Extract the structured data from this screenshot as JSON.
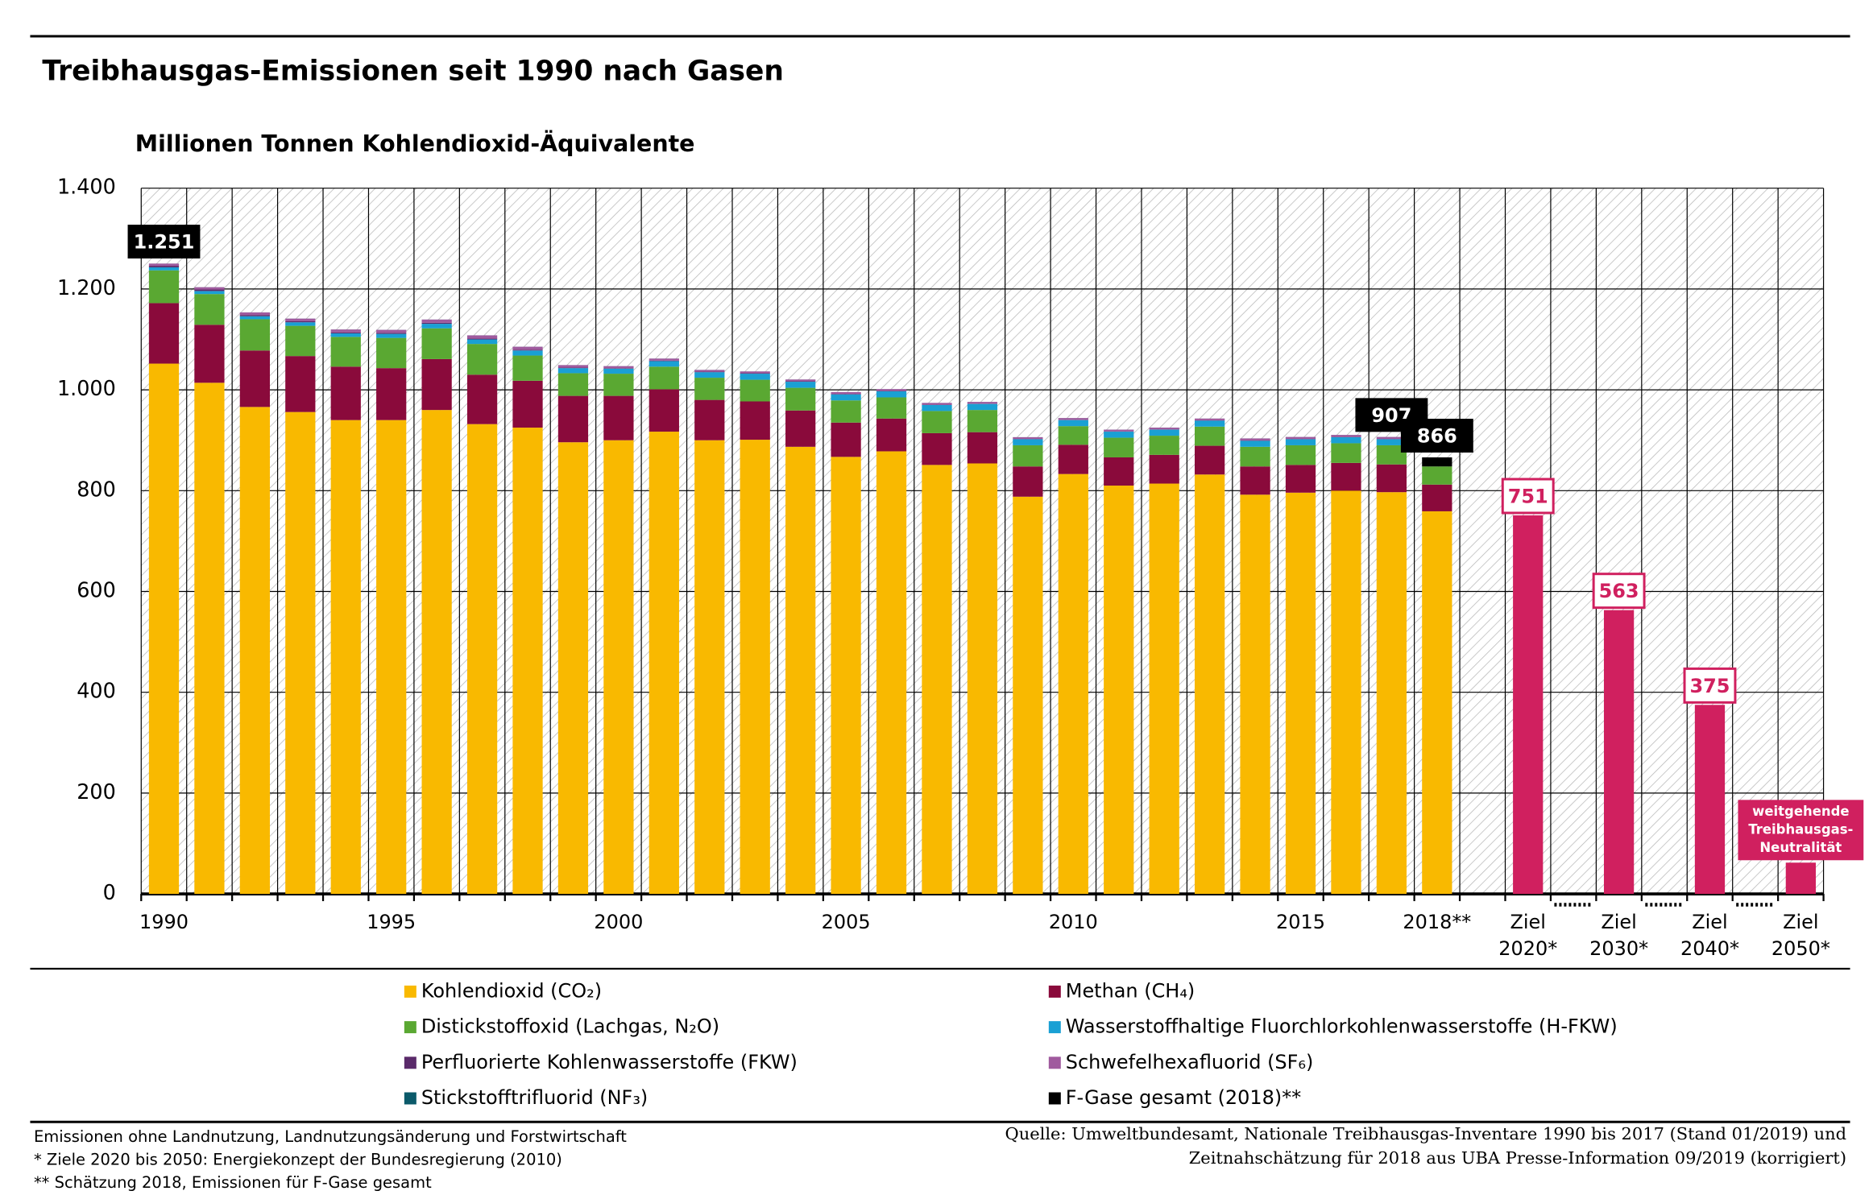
{
  "chart_data": {
    "type": "stacked-bar",
    "title": "Treibhausgas-Emissionen seit 1990 nach Gasen",
    "y_label": "Millionen Tonnen Kohlendioxid-Äquivalente",
    "categories": [
      "1990",
      null,
      null,
      null,
      null,
      "1995",
      null,
      null,
      null,
      null,
      "2000",
      null,
      null,
      null,
      null,
      "2005",
      null,
      null,
      null,
      null,
      "2010",
      null,
      null,
      null,
      null,
      "2015",
      null,
      null,
      "2018**",
      null,
      "Ziel\n2020*",
      null,
      "Ziel\n2030*",
      null,
      "Ziel\n2040*",
      null,
      "Ziel\n2050*"
    ],
    "ylim": [
      0,
      1400
    ],
    "yticks": [
      0,
      200,
      400,
      600,
      800,
      {
        "value": 1000,
        "label": "1.000"
      },
      {
        "value": 1200,
        "label": "1.200"
      },
      {
        "value": 1400,
        "label": "1.400"
      }
    ],
    "grid": true,
    "series": [
      {
        "name": "Kohlendioxid (CO₂)",
        "color": "#f9b900",
        "values": [
          1052,
          1014,
          966,
          956,
          940,
          940,
          960,
          932,
          925,
          896,
          900,
          917,
          900,
          901,
          887,
          867,
          878,
          851,
          854,
          788,
          833,
          810,
          814,
          832,
          792,
          796,
          800,
          797,
          759,
          null,
          null,
          null,
          null,
          null,
          null,
          null,
          null
        ]
      },
      {
        "name": "Methan (CH₄)",
        "color": "#8a0a3b",
        "values": [
          120,
          115,
          112,
          111,
          106,
          103,
          101,
          98,
          93,
          92,
          88,
          84,
          80,
          76,
          72,
          68,
          65,
          63,
          62,
          60,
          58,
          56,
          57,
          57,
          56,
          55,
          55,
          55,
          53,
          null,
          null,
          null,
          null,
          null,
          null,
          null,
          null
        ]
      },
      {
        "name": "Distickstoffoxid (Lachgas, N₂O)",
        "color": "#5aa832",
        "values": [
          65,
          61,
          62,
          60,
          59,
          60,
          61,
          61,
          50,
          45,
          44,
          45,
          44,
          43,
          45,
          44,
          42,
          44,
          44,
          42,
          37,
          39,
          38,
          38,
          39,
          39,
          39,
          38,
          36,
          null,
          null,
          null,
          null,
          null,
          null,
          null,
          null
        ]
      },
      {
        "name": "Wasserstoffhaltige Fluorchlorkohlenwasserstoffe (H-FKW)",
        "color": "#1aa0d4",
        "values": [
          6,
          6,
          6,
          7,
          7,
          8,
          9,
          9,
          10,
          10,
          10,
          11,
          11,
          12,
          12,
          12,
          12,
          12,
          12,
          12,
          12,
          12,
          12,
          12,
          12,
          12,
          12,
          12,
          null,
          null,
          null,
          null,
          null,
          null,
          null,
          null,
          null
        ]
      },
      {
        "name": "Perfluorierte Kohlenwasserstoffe (FKW)",
        "color": "#5a2a6a",
        "values": [
          3,
          3,
          2.5,
          2,
          2,
          2,
          2,
          1.5,
          1.5,
          1,
          1,
          1,
          1,
          1,
          1,
          1,
          1,
          0.5,
          0.5,
          0.5,
          0.5,
          0.5,
          0.5,
          0.5,
          0.5,
          0.5,
          0.5,
          0.5,
          null,
          null,
          null,
          null,
          null,
          null,
          null,
          null,
          null
        ]
      },
      {
        "name": "Schwefelhexafluorid (SF₆)",
        "color": "#a05a9e",
        "values": [
          4.4,
          4.6,
          5,
          5.3,
          5.7,
          6,
          6.4,
          6.5,
          6,
          5,
          4,
          4,
          3.5,
          3.5,
          3.5,
          3.5,
          3.5,
          3.5,
          3.5,
          3.5,
          3.5,
          3.5,
          3.5,
          3.5,
          4,
          4,
          4,
          4,
          null,
          null,
          null,
          null,
          null,
          null,
          null,
          null,
          null
        ]
      },
      {
        "name": "Stickstofftrifluorid (NF₃)",
        "color": "#0b5a6a",
        "values": [
          0.1,
          0.1,
          0.1,
          0.1,
          0.1,
          0.1,
          0.1,
          0.1,
          0.1,
          0.1,
          0.1,
          0.1,
          0.1,
          0.1,
          0.1,
          0.1,
          0.1,
          0.1,
          0.1,
          0.1,
          0.1,
          0.1,
          0.1,
          0.1,
          0.1,
          0.1,
          0.1,
          0.1,
          null,
          null,
          null,
          null,
          null,
          null,
          null,
          null,
          null
        ]
      },
      {
        "name": "F-Gase gesamt (2018)**",
        "color": "#000000",
        "values": [
          null,
          null,
          null,
          null,
          null,
          null,
          null,
          null,
          null,
          null,
          null,
          null,
          null,
          null,
          null,
          null,
          null,
          null,
          null,
          null,
          null,
          null,
          null,
          null,
          null,
          null,
          null,
          null,
          18,
          null,
          null,
          null,
          null,
          null,
          null,
          null,
          null
        ]
      }
    ],
    "totals": {
      "values": [
        1251,
        null,
        null,
        null,
        null,
        null,
        null,
        null,
        null,
        null,
        null,
        null,
        null,
        null,
        null,
        null,
        null,
        null,
        null,
        null,
        null,
        null,
        null,
        null,
        null,
        null,
        null,
        907,
        866,
        null,
        null,
        null,
        null,
        null,
        null,
        null,
        null
      ],
      "value_labels": [
        "1.251",
        null,
        null,
        null,
        null,
        null,
        null,
        null,
        null,
        null,
        null,
        null,
        null,
        null,
        null,
        null,
        null,
        null,
        null,
        null,
        null,
        null,
        null,
        null,
        null,
        null,
        null,
        "907",
        "866",
        null,
        null,
        null,
        null,
        null,
        null,
        null,
        null
      ]
    },
    "targets": {
      "color": "#d0205f",
      "values": [
        null,
        null,
        null,
        null,
        null,
        null,
        null,
        null,
        null,
        null,
        null,
        null,
        null,
        null,
        null,
        null,
        null,
        null,
        null,
        null,
        null,
        null,
        null,
        null,
        null,
        null,
        null,
        null,
        null,
        null,
        751,
        null,
        563,
        null,
        375,
        null,
        62
      ],
      "value_labels": [
        null,
        null,
        null,
        null,
        null,
        null,
        null,
        null,
        null,
        null,
        null,
        null,
        null,
        null,
        null,
        null,
        null,
        null,
        null,
        null,
        null,
        null,
        null,
        null,
        null,
        null,
        null,
        null,
        null,
        null,
        "751",
        null,
        "563",
        null,
        "375",
        null,
        null
      ],
      "note": [
        "weitgehende",
        "Treibhausgas-",
        "Neutralität"
      ]
    },
    "footnotes": [
      "Emissionen ohne Landnutzung, Landnutzungsänderung und Forstwirtschaft",
      "* Ziele 2020 bis 2050: Energiekonzept der Bundesregierung (2010)",
      "** Schätzung 2018, Emissionen für F-Gase gesamt"
    ],
    "source": [
      "Quelle: Umweltbundesamt, Nationale Treibhausgas-Inventare 1990 bis 2017 (Stand 01/2019) und",
      "Zeitnahschätzung für 2018 aus UBA Presse-Information 09/2019 (korrigiert)"
    ]
  }
}
